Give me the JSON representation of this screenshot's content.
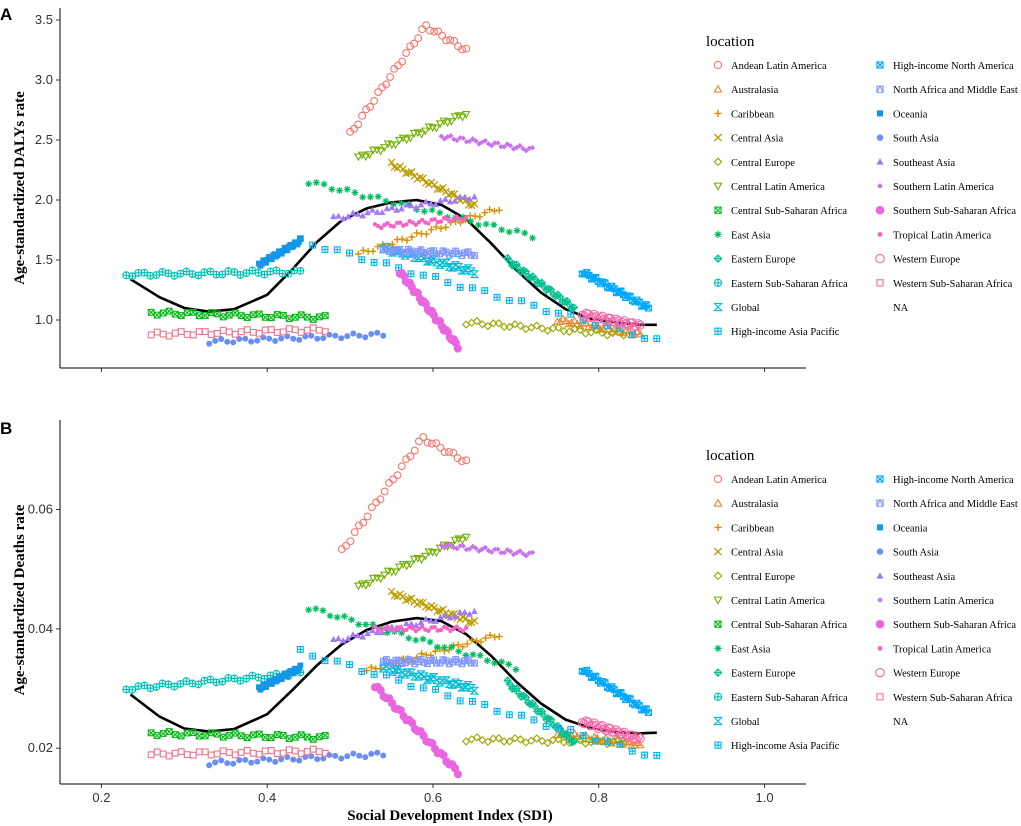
{
  "chart_data": [
    {
      "panel": "A",
      "type": "scatter",
      "ylabel": "Age-standardized DALYs rate",
      "xlabel": "",
      "xlim": [
        0.15,
        1.05
      ],
      "ylim": [
        0.6,
        3.6
      ],
      "xticks": [
        0.2,
        0.4,
        0.6,
        0.8,
        1.0
      ],
      "xtick_labels": [
        "",
        "",
        "",
        "",
        ""
      ],
      "yticks": [
        1.0,
        1.5,
        2.0,
        2.5,
        3.0,
        3.5
      ],
      "ytick_labels": [
        "1.0",
        "1.5",
        "2.0",
        "2.5",
        "3.0",
        "3.5"
      ],
      "legend_title": "location",
      "fit": [
        [
          0.235,
          1.34
        ],
        [
          0.27,
          1.19
        ],
        [
          0.3,
          1.1
        ],
        [
          0.33,
          1.07
        ],
        [
          0.36,
          1.09
        ],
        [
          0.4,
          1.21
        ],
        [
          0.43,
          1.42
        ],
        [
          0.46,
          1.65
        ],
        [
          0.49,
          1.83
        ],
        [
          0.52,
          1.93
        ],
        [
          0.55,
          1.98
        ],
        [
          0.58,
          2.0
        ],
        [
          0.61,
          1.96
        ],
        [
          0.64,
          1.84
        ],
        [
          0.67,
          1.64
        ],
        [
          0.7,
          1.42
        ],
        [
          0.73,
          1.23
        ],
        [
          0.76,
          1.09
        ],
        [
          0.79,
          1.01
        ],
        [
          0.82,
          0.98
        ],
        [
          0.85,
          0.96
        ],
        [
          0.87,
          0.96
        ]
      ],
      "series": [
        {
          "name": "Andean Latin America",
          "marker": "circle-open",
          "color": "#F8766D",
          "x_range": [
            0.5,
            0.64
          ],
          "y_start": 2.55,
          "y_end": 3.25,
          "peak": 3.45
        },
        {
          "name": "Australasia",
          "marker": "triangle-open",
          "color": "#E9842C",
          "x_range": [
            0.75,
            0.85
          ],
          "y_start": 1.0,
          "y_end": 0.88
        },
        {
          "name": "Caribbean",
          "marker": "plus",
          "color": "#D69100",
          "x_range": [
            0.51,
            0.68
          ],
          "y_start": 1.55,
          "y_end": 1.93
        },
        {
          "name": "Central Asia",
          "marker": "cross",
          "color": "#BC9D00",
          "x_range": [
            0.55,
            0.65
          ],
          "y_start": 2.3,
          "y_end": 1.95
        },
        {
          "name": "Central Europe",
          "marker": "diamond-open",
          "color": "#9CA700",
          "x_range": [
            0.64,
            0.83
          ],
          "y_start": 0.98,
          "y_end": 0.88
        },
        {
          "name": "Central Latin America",
          "marker": "triangle-down-open",
          "color": "#6FB000",
          "x_range": [
            0.51,
            0.64
          ],
          "y_start": 2.35,
          "y_end": 2.72
        },
        {
          "name": "Central Sub-Saharan Africa",
          "marker": "square-cross",
          "color": "#00B813",
          "x_range": [
            0.26,
            0.47
          ],
          "y_start": 1.06,
          "y_end": 1.02
        },
        {
          "name": "East Asia",
          "marker": "asterisk",
          "color": "#00BD61",
          "x_range": [
            0.45,
            0.72
          ],
          "y_start": 2.15,
          "y_end": 1.7
        },
        {
          "name": "Eastern Europe",
          "marker": "diamond-plus",
          "color": "#00C08E",
          "x_range": [
            0.69,
            0.77
          ],
          "y_start": 1.5,
          "y_end": 1.1
        },
        {
          "name": "Eastern Sub-Saharan Africa",
          "marker": "circle-plus",
          "color": "#00C0B4",
          "x_range": [
            0.23,
            0.44
          ],
          "y_start": 1.38,
          "y_end": 1.4
        },
        {
          "name": "Global",
          "marker": "hourglass",
          "color": "#00BDD4",
          "x_range": [
            0.54,
            0.65
          ],
          "y_start": 1.6,
          "y_end": 1.4
        },
        {
          "name": "High-income Asia Pacific",
          "marker": "square-plus",
          "color": "#00B5EE",
          "x_range": [
            0.44,
            0.87
          ],
          "y_start": 1.66,
          "y_end": 0.83
        },
        {
          "name": "High-income North America",
          "marker": "square-x",
          "color": "#00A7FF",
          "x_range": [
            0.78,
            0.86
          ],
          "y_start": 1.4,
          "y_end": 1.1
        },
        {
          "name": "North Africa and Middle East",
          "marker": "square-triangle",
          "color": "#7F96FF",
          "x_range": [
            0.54,
            0.65
          ],
          "y_start": 1.58,
          "y_end": 1.55
        },
        {
          "name": "Oceania",
          "marker": "square-filled",
          "color": "#1597E8",
          "x_range": [
            0.39,
            0.44
          ],
          "y_start": 1.46,
          "y_end": 1.66
        },
        {
          "name": "South Asia",
          "marker": "circle-filled",
          "color": "#6A8EF5",
          "x_range": [
            0.33,
            0.54
          ],
          "y_start": 0.82,
          "y_end": 0.88
        },
        {
          "name": "Southeast Asia",
          "marker": "triangle-filled",
          "color": "#A279F7",
          "x_range": [
            0.48,
            0.65
          ],
          "y_start": 1.85,
          "y_end": 2.03
        },
        {
          "name": "Southern Latin America",
          "marker": "diamond-filled",
          "color": "#C872F0",
          "x_range": [
            0.61,
            0.72
          ],
          "y_start": 2.53,
          "y_end": 2.42
        },
        {
          "name": "Southern Sub-Saharan Africa",
          "marker": "circle-filled-large",
          "color": "#EA66E0",
          "x_range": [
            0.56,
            0.63
          ],
          "y_start": 1.4,
          "y_end": 0.78
        },
        {
          "name": "Tropical Latin America",
          "marker": "circle-small",
          "color": "#F564C7",
          "x_range": [
            0.53,
            0.64
          ],
          "y_start": 1.78,
          "y_end": 1.85
        },
        {
          "name": "Western Europe",
          "marker": "circle-open-large",
          "color": "#FA64A8",
          "x_range": [
            0.78,
            0.85
          ],
          "y_start": 1.05,
          "y_end": 0.95
        },
        {
          "name": "Western Sub-Saharan Africa",
          "marker": "square-open",
          "color": "#F5728A",
          "x_range": [
            0.26,
            0.47
          ],
          "y_start": 0.88,
          "y_end": 0.92
        }
      ],
      "na_label": "NA"
    },
    {
      "panel": "B",
      "type": "scatter",
      "ylabel": "Age-standardized Deaths rate",
      "xlabel": "Social Development Index (SDI)",
      "xlim": [
        0.15,
        1.05
      ],
      "ylim": [
        0.014,
        0.075
      ],
      "xticks": [
        0.2,
        0.4,
        0.6,
        0.8,
        1.0
      ],
      "xtick_labels": [
        "0.2",
        "0.4",
        "0.6",
        "0.8",
        "1.0"
      ],
      "yticks": [
        0.02,
        0.04,
        0.06
      ],
      "ytick_labels": [
        "0.02",
        "0.04",
        "0.06"
      ],
      "legend_title": "location",
      "fit": [
        [
          0.235,
          0.029
        ],
        [
          0.27,
          0.0253
        ],
        [
          0.3,
          0.0233
        ],
        [
          0.33,
          0.0228
        ],
        [
          0.36,
          0.0232
        ],
        [
          0.4,
          0.0257
        ],
        [
          0.43,
          0.0297
        ],
        [
          0.46,
          0.0339
        ],
        [
          0.49,
          0.0374
        ],
        [
          0.52,
          0.0398
        ],
        [
          0.55,
          0.0412
        ],
        [
          0.58,
          0.0418
        ],
        [
          0.61,
          0.0413
        ],
        [
          0.64,
          0.0391
        ],
        [
          0.67,
          0.0355
        ],
        [
          0.7,
          0.0312
        ],
        [
          0.73,
          0.0275
        ],
        [
          0.76,
          0.0248
        ],
        [
          0.79,
          0.0234
        ],
        [
          0.82,
          0.0227
        ],
        [
          0.85,
          0.0225
        ],
        [
          0.87,
          0.0226
        ]
      ],
      "series": [
        {
          "name": "Andean Latin America",
          "marker": "circle-open",
          "color": "#F8766D",
          "x_range": [
            0.49,
            0.64
          ],
          "y_start": 0.053,
          "y_end": 0.068,
          "peak": 0.072
        },
        {
          "name": "Australasia",
          "marker": "triangle-open",
          "color": "#E9842C",
          "x_range": [
            0.75,
            0.85
          ],
          "y_start": 0.0225,
          "y_end": 0.0205
        },
        {
          "name": "Caribbean",
          "marker": "plus",
          "color": "#D69100",
          "x_range": [
            0.52,
            0.68
          ],
          "y_start": 0.033,
          "y_end": 0.039
        },
        {
          "name": "Central Asia",
          "marker": "cross",
          "color": "#BC9D00",
          "x_range": [
            0.55,
            0.65
          ],
          "y_start": 0.046,
          "y_end": 0.041
        },
        {
          "name": "Central Europe",
          "marker": "diamond-open",
          "color": "#9CA700",
          "x_range": [
            0.64,
            0.83
          ],
          "y_start": 0.0215,
          "y_end": 0.021
        },
        {
          "name": "Central Latin America",
          "marker": "triangle-down-open",
          "color": "#6FB000",
          "x_range": [
            0.51,
            0.64
          ],
          "y_start": 0.047,
          "y_end": 0.0555
        },
        {
          "name": "Central Sub-Saharan Africa",
          "marker": "square-cross",
          "color": "#00B813",
          "x_range": [
            0.26,
            0.47
          ],
          "y_start": 0.0225,
          "y_end": 0.0218
        },
        {
          "name": "East Asia",
          "marker": "asterisk",
          "color": "#00BD61",
          "x_range": [
            0.45,
            0.7
          ],
          "y_start": 0.0435,
          "y_end": 0.0335
        },
        {
          "name": "Eastern Europe",
          "marker": "diamond-plus",
          "color": "#00C08E",
          "x_range": [
            0.69,
            0.77
          ],
          "y_start": 0.031,
          "y_end": 0.021
        },
        {
          "name": "Eastern Sub-Saharan Africa",
          "marker": "circle-plus",
          "color": "#00C0B4",
          "x_range": [
            0.23,
            0.44
          ],
          "y_start": 0.03,
          "y_end": 0.0325
        },
        {
          "name": "Global",
          "marker": "hourglass",
          "color": "#00BDD4",
          "x_range": [
            0.54,
            0.65
          ],
          "y_start": 0.0335,
          "y_end": 0.03
        },
        {
          "name": "High-income Asia Pacific",
          "marker": "square-plus",
          "color": "#00B5EE",
          "x_range": [
            0.44,
            0.87
          ],
          "y_start": 0.0362,
          "y_end": 0.0185
        },
        {
          "name": "High-income North America",
          "marker": "square-x",
          "color": "#00A7FF",
          "x_range": [
            0.78,
            0.86
          ],
          "y_start": 0.0332,
          "y_end": 0.026
        },
        {
          "name": "North Africa and Middle East",
          "marker": "square-triangle",
          "color": "#7F96FF",
          "x_range": [
            0.54,
            0.65
          ],
          "y_start": 0.0345,
          "y_end": 0.0345
        },
        {
          "name": "Oceania",
          "marker": "square-filled",
          "color": "#1597E8",
          "x_range": [
            0.39,
            0.44
          ],
          "y_start": 0.03,
          "y_end": 0.0335
        },
        {
          "name": "South Asia",
          "marker": "circle-filled",
          "color": "#6A8EF5",
          "x_range": [
            0.33,
            0.54
          ],
          "y_start": 0.0175,
          "y_end": 0.019
        },
        {
          "name": "Southeast Asia",
          "marker": "triangle-filled",
          "color": "#A279F7",
          "x_range": [
            0.48,
            0.65
          ],
          "y_start": 0.038,
          "y_end": 0.043
        },
        {
          "name": "Southern Latin America",
          "marker": "diamond-filled",
          "color": "#C872F0",
          "x_range": [
            0.61,
            0.72
          ],
          "y_start": 0.054,
          "y_end": 0.0525
        },
        {
          "name": "Southern Sub-Saharan Africa",
          "marker": "circle-filled-large",
          "color": "#EA66E0",
          "x_range": [
            0.53,
            0.63
          ],
          "y_start": 0.0305,
          "y_end": 0.016
        },
        {
          "name": "Tropical Latin America",
          "marker": "circle-small",
          "color": "#F564C7",
          "x_range": [
            0.53,
            0.64
          ],
          "y_start": 0.04,
          "y_end": 0.04
        },
        {
          "name": "Western Europe",
          "marker": "circle-open-large",
          "color": "#FA64A8",
          "x_range": [
            0.78,
            0.85
          ],
          "y_start": 0.0245,
          "y_end": 0.0215
        },
        {
          "name": "Western Sub-Saharan Africa",
          "marker": "square-open",
          "color": "#F5728A",
          "x_range": [
            0.26,
            0.47
          ],
          "y_start": 0.019,
          "y_end": 0.0195
        }
      ],
      "na_label": "NA"
    }
  ]
}
